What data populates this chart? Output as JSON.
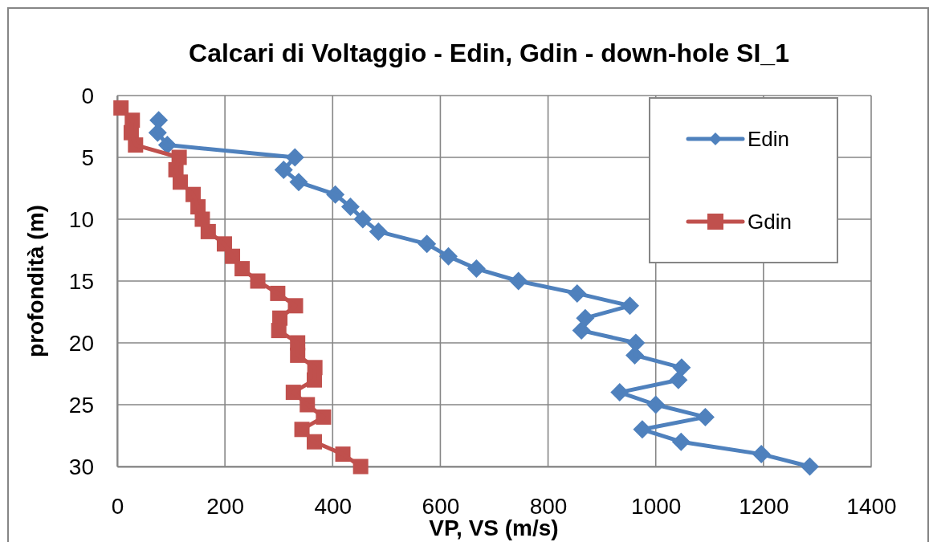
{
  "chart_data": {
    "type": "line",
    "title": "Calcari di Voltaggio - Edin, Gdin - down-hole SI_1",
    "xlabel": "VP, VS (m/s)",
    "ylabel": "profondità (m)",
    "xlim": [
      0,
      1400
    ],
    "xticks": [
      0,
      200,
      400,
      600,
      800,
      1000,
      1200,
      1400
    ],
    "ylim": [
      30,
      0
    ],
    "yticks": [
      0,
      5,
      10,
      15,
      20,
      25,
      30
    ],
    "grid": true,
    "legend": "top right",
    "line_style": "solid",
    "series": [
      {
        "name": "Edin",
        "color": "#4f81bd",
        "marker": "diamond",
        "x": [
          null,
          77,
          75,
          93,
          330,
          309,
          337,
          405,
          433,
          456,
          485,
          575,
          615,
          667,
          745,
          854,
          952,
          869,
          862,
          963,
          961,
          1048,
          1042,
          933,
          1000,
          1092,
          975,
          1047,
          1196,
          1286
        ],
        "values": [
          null,
          2,
          3,
          4,
          5,
          6,
          7,
          8,
          9,
          10,
          11,
          12,
          13,
          14,
          15,
          16,
          17,
          18,
          19,
          20,
          21,
          22,
          23,
          24,
          25,
          26,
          27,
          28,
          29,
          30
        ]
      },
      {
        "name": "Gdin",
        "color": "#c0504d",
        "marker": "square",
        "x": [
          7,
          28,
          26,
          34,
          115,
          109,
          117,
          141,
          150,
          158,
          169,
          199,
          214,
          232,
          261,
          298,
          331,
          302,
          300,
          335,
          335,
          367,
          366,
          327,
          353,
          383,
          343,
          366,
          419,
          452
        ],
        "values": [
          1,
          2,
          3,
          4,
          5,
          6,
          7,
          8,
          9,
          10,
          11,
          12,
          13,
          14,
          15,
          16,
          17,
          18,
          19,
          20,
          21,
          22,
          23,
          24,
          25,
          26,
          27,
          28,
          29,
          30
        ]
      }
    ]
  }
}
